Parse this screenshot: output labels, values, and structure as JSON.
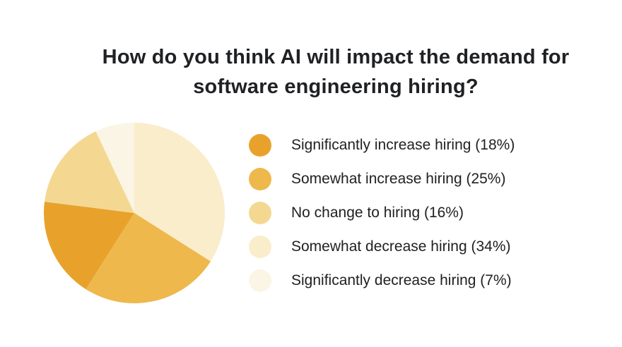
{
  "title_lines": [
    "How do you think AI will impact the demand for",
    "software engineering hiring?"
  ],
  "chart_data": {
    "type": "pie",
    "title": "How do you think AI will impact the demand for software engineering hiring?",
    "legend_position": "right",
    "start_angle_deg": 0,
    "direction": "clockwise",
    "draw_order": "descending-percentage",
    "slices": [
      {
        "label": "Significantly increase hiring",
        "pct": 18,
        "color": "#E8A22C"
      },
      {
        "label": "Somewhat increase hiring",
        "pct": 25,
        "color": "#EEB84C"
      },
      {
        "label": "No change to hiring",
        "pct": 16,
        "color": "#F4D892"
      },
      {
        "label": "Somewhat decrease hiring",
        "pct": 34,
        "color": "#F9EDCB"
      },
      {
        "label": "Significantly decrease hiring",
        "pct": 7,
        "color": "#FBF5E5"
      }
    ],
    "text_color": "#202124",
    "background_color": "#FFFFFF"
  }
}
